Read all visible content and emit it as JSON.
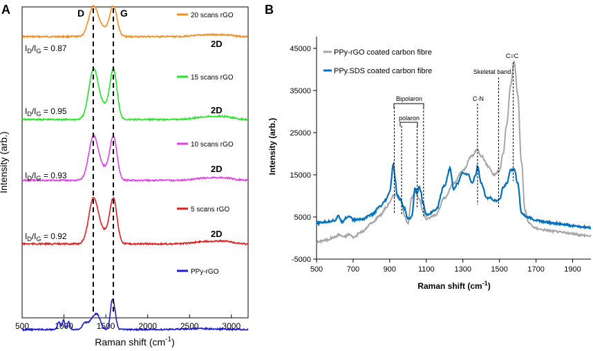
{
  "chart_data": [
    {
      "panel": "A",
      "type": "line",
      "xlabel": "Raman shift (cm",
      "xlabel_sup": "-1",
      "xlabel_end": ")",
      "ylabel": "Intensity (arb.)",
      "xlim": [
        500,
        3200
      ],
      "x_ticks": [
        500,
        1000,
        1500,
        2000,
        2500,
        3000
      ],
      "band_labels": [
        "D",
        "G"
      ],
      "band_positions": [
        1350,
        1590
      ],
      "series": [
        {
          "name": "20 scans rGO",
          "color": "#f28c1e",
          "ratio_text": "= 0.87",
          "show_2d": true
        },
        {
          "name": "15 scans rGO",
          "color": "#22e522",
          "ratio_text": "= 0.95",
          "show_2d": true
        },
        {
          "name": "10 scans rGO",
          "color": "#e53de5",
          "ratio_text": "= 0.93",
          "show_2d": true
        },
        {
          "name": "5 scans rGO",
          "color": "#e51b1b",
          "ratio_text": "= 0.92",
          "show_2d": true
        },
        {
          "name": "PPy-rGO",
          "color": "#1b1bd6",
          "ratio_text": "",
          "show_2d": false
        }
      ],
      "ratio_label": {
        "I": "I",
        "sub_d": "D",
        "slash": "/",
        "sub_g": "G"
      },
      "label_2d": "2D"
    },
    {
      "panel": "B",
      "type": "line",
      "xlabel": "Raman shift (cm",
      "xlabel_sup": "-1",
      "xlabel_end": ")",
      "ylabel": "Intensity (arb.)",
      "xlim": [
        500,
        2000
      ],
      "ylim": [
        -5000,
        45000
      ],
      "x_ticks": [
        500,
        700,
        900,
        1100,
        1300,
        1500,
        1700,
        1900
      ],
      "y_ticks": [
        -5000,
        5000,
        15000,
        25000,
        35000,
        45000
      ],
      "series": [
        {
          "name": "PPy-rGO coated carbon fibre",
          "color": "#a6a6a6",
          "x": [
            500,
            550,
            600,
            620,
            650,
            680,
            700,
            750,
            800,
            850,
            880,
            900,
            920,
            940,
            960,
            980,
            1000,
            1020,
            1040,
            1060,
            1080,
            1100,
            1150,
            1200,
            1250,
            1300,
            1350,
            1380,
            1400,
            1440,
            1470,
            1500,
            1520,
            1540,
            1560,
            1580,
            1600,
            1620,
            1640,
            1660,
            1700,
            1750,
            1800,
            1850,
            1900,
            1950,
            2000
          ],
          "y": [
            -1000,
            -500,
            200,
            800,
            300,
            900,
            200,
            1500,
            3500,
            5500,
            7200,
            8500,
            10000,
            10500,
            9000,
            5500,
            3500,
            9500,
            11000,
            9500,
            6500,
            4500,
            5500,
            9500,
            13000,
            16000,
            19500,
            21000,
            19500,
            17000,
            15000,
            16000,
            20000,
            27000,
            36000,
            42000,
            34000,
            18000,
            6500,
            3500,
            2300,
            1900,
            1600,
            1300,
            1000,
            700,
            500
          ]
        },
        {
          "name": "PPy.SDS coated carbon fibre",
          "color": "#0070c0",
          "x": [
            500,
            550,
            600,
            620,
            640,
            660,
            680,
            700,
            750,
            800,
            850,
            880,
            900,
            920,
            930,
            940,
            960,
            980,
            1000,
            1020,
            1040,
            1050,
            1060,
            1070,
            1080,
            1100,
            1150,
            1200,
            1230,
            1250,
            1270,
            1300,
            1330,
            1350,
            1370,
            1380,
            1400,
            1430,
            1450,
            1480,
            1500,
            1520,
            1540,
            1560,
            1580,
            1600,
            1620,
            1650,
            1700,
            1750,
            1800,
            1850,
            1900,
            1950,
            2000
          ],
          "y": [
            3500,
            3800,
            4200,
            5200,
            3800,
            4800,
            5200,
            4300,
            4500,
            5500,
            7500,
            9000,
            11000,
            17500,
            14000,
            10000,
            9000,
            7000,
            4500,
            5000,
            12000,
            10500,
            12500,
            11000,
            8500,
            5500,
            6500,
            12500,
            16500,
            11500,
            13000,
            15500,
            15000,
            13000,
            15000,
            17000,
            13000,
            9500,
            9500,
            8800,
            9000,
            12000,
            13000,
            16000,
            16500,
            13000,
            6000,
            5000,
            4200,
            3800,
            3500,
            3200,
            2900,
            2600,
            2400
          ]
        }
      ],
      "annotations": {
        "bipolaron": "Bipolaron",
        "polaron": "polaron",
        "cn": "C-N",
        "skeletal": "Skeletal band",
        "cc": "C=C"
      },
      "ref_lines": [
        925,
        965,
        1050,
        1085,
        1380,
        1495,
        1575
      ]
    }
  ],
  "panel_letters": {
    "a": "A",
    "b": "B"
  }
}
